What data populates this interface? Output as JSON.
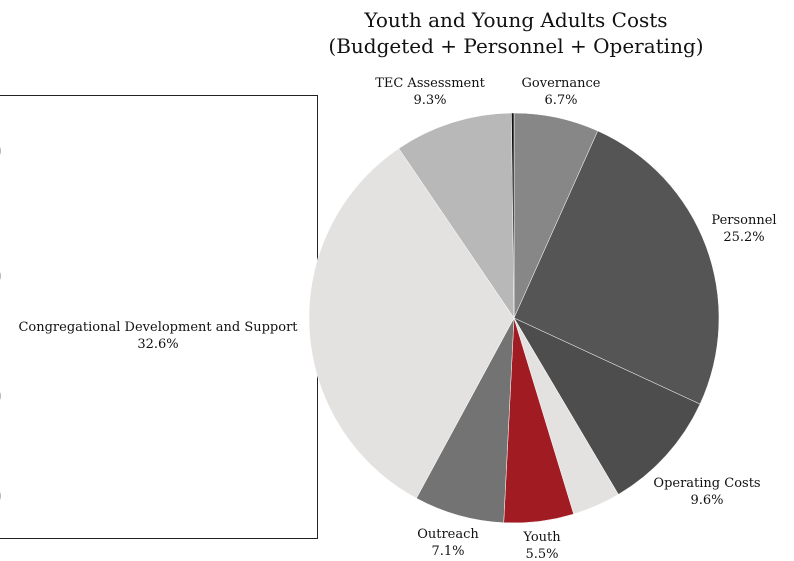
{
  "edge_glyphs": [
    ")",
    ")",
    ")",
    ")"
  ],
  "chart_data": {
    "type": "pie",
    "title": [
      "Youth and Young Adults Costs",
      "(Budgeted + Personnel + Operating)"
    ],
    "start_angle_deg": 0,
    "direction": "clockwise",
    "slices": [
      {
        "label": "Governance",
        "value": 6.7,
        "display": "6.7%",
        "color": "#878787"
      },
      {
        "label": "Personnel",
        "value": 25.2,
        "display": "25.2%",
        "color": "#555555"
      },
      {
        "label": "Operating Costs",
        "value": 9.6,
        "display": "9.6%",
        "color": "#4d4d4d"
      },
      {
        "label": "",
        "value": 3.8,
        "display": "",
        "color": "#e3e2e1"
      },
      {
        "label": "Youth",
        "value": 5.5,
        "display": "5.5%",
        "color": "#a01c22"
      },
      {
        "label": "Outreach",
        "value": 7.1,
        "display": "7.1%",
        "color": "#737373"
      },
      {
        "label": "Congregational Development and Support",
        "value": 32.6,
        "display": "32.6%",
        "color": "#e3e2e1"
      },
      {
        "label": "TEC Assessment",
        "value": 9.3,
        "display": "9.3%",
        "color": "#b8b8b8"
      },
      {
        "label": "",
        "value": 0.2,
        "display": "",
        "color": "#111111"
      }
    ]
  }
}
